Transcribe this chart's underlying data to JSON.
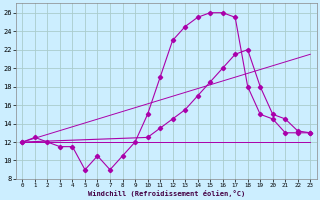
{
  "xlabel": "Windchill (Refroidissement éolien,°C)",
  "background_color": "#cceeff",
  "grid_color": "#aacccc",
  "line_color": "#aa00aa",
  "xlim": [
    -0.5,
    23.5
  ],
  "ylim": [
    8,
    27
  ],
  "xticks": [
    0,
    1,
    2,
    3,
    4,
    5,
    6,
    7,
    8,
    9,
    10,
    11,
    12,
    13,
    14,
    15,
    16,
    17,
    18,
    19,
    20,
    21,
    22,
    23
  ],
  "yticks": [
    8,
    10,
    12,
    14,
    16,
    18,
    20,
    22,
    24,
    26
  ],
  "series": {
    "line1_x": [
      0,
      1,
      2,
      3,
      4,
      5,
      6,
      7,
      8,
      9,
      10,
      11,
      12,
      13,
      14,
      15,
      16,
      17,
      18,
      19,
      20,
      21,
      22,
      23
    ],
    "line1_y": [
      12,
      12.5,
      12,
      11.5,
      11.5,
      9,
      10.5,
      9,
      10.5,
      12,
      15,
      19,
      23,
      24.5,
      25.5,
      26,
      26,
      25.5,
      18,
      15,
      14.5,
      13,
      13,
      13
    ],
    "line2_x": [
      0,
      10,
      11,
      12,
      13,
      14,
      15,
      16,
      17,
      18,
      19,
      20,
      21,
      22,
      23
    ],
    "line2_y": [
      12,
      12.5,
      13.5,
      14.5,
      15.5,
      17,
      18.5,
      20,
      21.5,
      22,
      18,
      15,
      14.5,
      13.2,
      13
    ],
    "line3_x": [
      0,
      23
    ],
    "line3_y": [
      12,
      12
    ],
    "line4_x": [
      0,
      23
    ],
    "line4_y": [
      12,
      21.5
    ]
  }
}
